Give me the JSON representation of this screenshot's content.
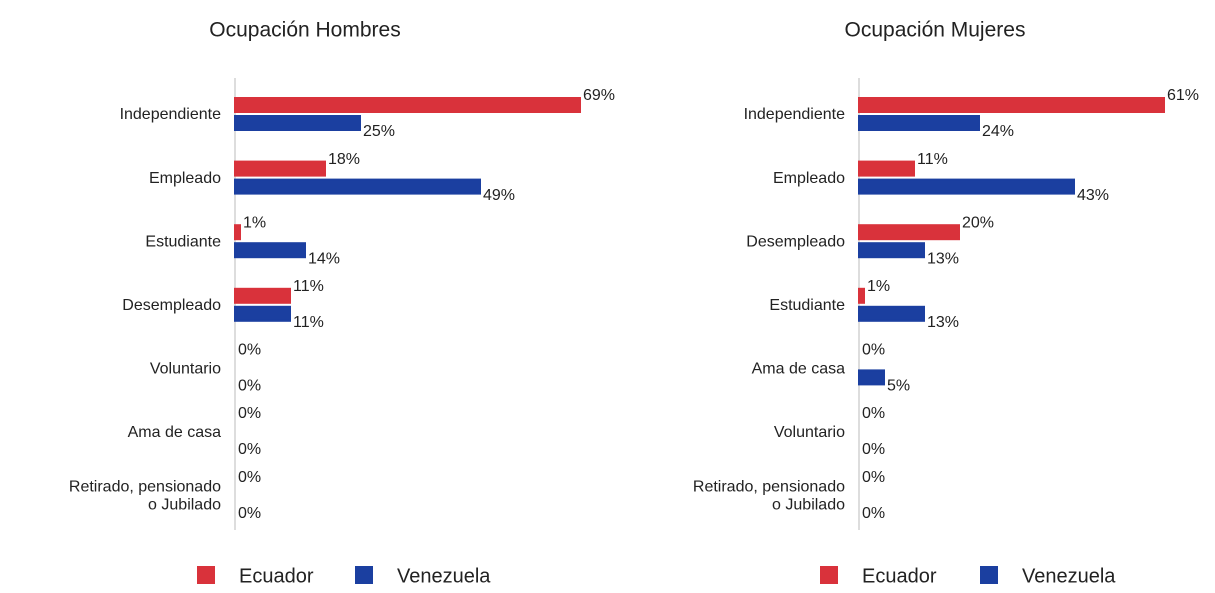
{
  "chart_data": [
    {
      "type": "bar",
      "title": "Ocupación Hombres",
      "categories": [
        "Independiente",
        "Empleado",
        "Estudiante",
        "Desempleado",
        "Voluntario",
        "Ama de casa",
        "Retirado, pensionado\no Jubilado"
      ],
      "series": [
        {
          "name": "Ecuador",
          "color": "#d9323b",
          "values": [
            69,
            18,
            1,
            11,
            0,
            0,
            0
          ],
          "value_labels": [
            "69%",
            "18%",
            "1%",
            "11%",
            "0%",
            "0%",
            "0%"
          ]
        },
        {
          "name": "Venezuela",
          "color": "#1b3fa0",
          "values": [
            25,
            49,
            14,
            11,
            0,
            0,
            0
          ],
          "value_labels": [
            "25%",
            "49%",
            "14%",
            "11%",
            "0%",
            "0%",
            "0%"
          ]
        }
      ]
    },
    {
      "type": "bar",
      "title": "Ocupación Mujeres",
      "categories": [
        "Independiente",
        "Empleado",
        "Desempleado",
        "Estudiante",
        "Ama de casa",
        "Voluntario",
        "Retirado, pensionado\no Jubilado"
      ],
      "series": [
        {
          "name": "Ecuador",
          "color": "#d9323b",
          "values": [
            61,
            11,
            20,
            1,
            0,
            0,
            0
          ],
          "value_labels": [
            "61%",
            "11%",
            "20%",
            "1%",
            "0%",
            "0%",
            "0%"
          ]
        },
        {
          "name": "Venezuela",
          "color": "#1b3fa0",
          "values": [
            24,
            43,
            13,
            13,
            5,
            0,
            0
          ],
          "value_labels": [
            "24%",
            "43%",
            "13%",
            "13%",
            "5%",
            "0%",
            "0%"
          ]
        }
      ]
    }
  ]
}
